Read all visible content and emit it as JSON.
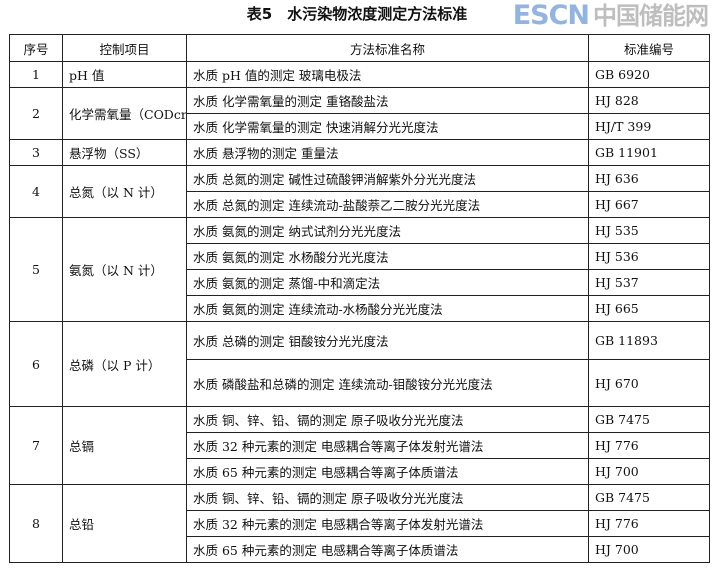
{
  "title": "表5　水污染物浓度测定方法标准",
  "headers": [
    "序号",
    "控制项目",
    "方法标准名称",
    "标准编号"
  ],
  "groups": [
    {
      "no": "1",
      "item": "pH 值",
      "methods": [
        {
          "name": "水质  pH 值的测定  玻璃电极法",
          "code": "GB 6920"
        }
      ]
    },
    {
      "no": "2",
      "item": "化学需氧量（CODcr）",
      "methods": [
        {
          "name": "水质  化学需氧量的测定  重铬酸盐法",
          "code": "HJ 828"
        },
        {
          "name": "水质  化学需氧量的测定  快速消解分光光度法",
          "code": "HJ/T 399"
        }
      ]
    },
    {
      "no": "3",
      "item": "悬浮物（SS）",
      "methods": [
        {
          "name": "水质  悬浮物的测定  重量法",
          "code": "GB 11901"
        }
      ]
    },
    {
      "no": "4",
      "item": "总氮（以 N 计）",
      "methods": [
        {
          "name": "水质  总氮的测定  碱性过硫酸钾消解紫外分光光度法",
          "code": "HJ 636"
        },
        {
          "name": "水质  总氮的测定  连续流动-盐酸萘乙二胺分光光度法",
          "code": "HJ 667"
        }
      ]
    },
    {
      "no": "5",
      "item": "氨氮（以 N 计）",
      "methods": [
        {
          "name": "水质  氨氮的测定  纳式试剂分光光度法",
          "code": "HJ 535"
        },
        {
          "name": "水质  氨氮的测定  水杨酸分光光度法",
          "code": "HJ 536"
        },
        {
          "name": "水质  氨氮的测定  蒸馏-中和滴定法",
          "code": "HJ 537"
        },
        {
          "name": "水质  氨氮的测定  连续流动-水杨酸分光光度法",
          "code": "HJ 665"
        }
      ]
    },
    {
      "no": "6",
      "item": "总磷（以 P 计）",
      "methods": [
        {
          "name": "水质  总磷的测定  钼酸铵分光光度法",
          "code": "GB 11893"
        },
        {
          "name": "水质  磷酸盐和总磷的测定  连续流动-钼酸铵分光光度法",
          "code": "HJ 670"
        }
      ]
    },
    {
      "no": "7",
      "item": "总镉",
      "methods": [
        {
          "name": "水质  铜、锌、铅、镉的测定  原子吸收分光光度法",
          "code": "GB 7475"
        },
        {
          "name": "水质  32 种元素的测定  电感耦合等离子体发射光谱法",
          "code": "HJ 776"
        },
        {
          "name": "水质  65 种元素的测定  电感耦合等离子体质谱法",
          "code": "HJ 700"
        }
      ]
    },
    {
      "no": "8",
      "item": "总铅",
      "methods": [
        {
          "name": "水质  铜、锌、铅、镉的测定  原子吸收分光光度法",
          "code": "GB 7475"
        },
        {
          "name": "水质  32 种元素的测定  电感耦合等离子体发射光谱法",
          "code": "HJ 776"
        },
        {
          "name": "水质  65 种元素的测定  电感耦合等离子体质谱法",
          "code": "HJ 700"
        }
      ]
    }
  ],
  "watermark": {
    "en": "ESCN",
    "zh": "中国储能网"
  }
}
